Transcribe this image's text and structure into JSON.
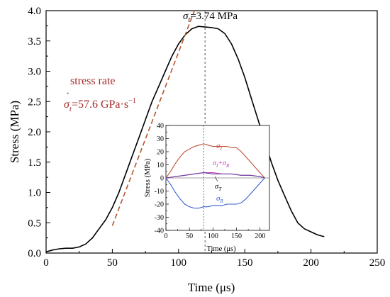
{
  "chart_data": [
    {
      "type": "line",
      "title": "",
      "xlabel": "Time (μs)",
      "ylabel": "Stress (MPa)",
      "xlim": [
        0,
        250
      ],
      "ylim": [
        0,
        4.0
      ],
      "xticks": [
        "0",
        "50",
        "100",
        "150",
        "200",
        "250"
      ],
      "yticks": [
        "0.0",
        "0.5",
        "1.0",
        "1.5",
        "2.0",
        "2.5",
        "3.0",
        "3.5",
        "4.0"
      ],
      "grid": false,
      "series": [
        {
          "color": "#000000",
          "x": [
            0,
            5,
            10,
            15,
            20,
            25,
            30,
            35,
            40,
            45,
            50,
            55,
            60,
            65,
            70,
            75,
            80,
            85,
            90,
            95,
            100,
            105,
            110,
            115,
            120,
            125,
            130,
            135,
            140,
            145,
            150,
            155,
            160,
            165,
            170,
            175,
            180,
            185,
            190,
            195,
            200,
            205,
            210
          ],
          "values": [
            0.02,
            0.05,
            0.07,
            0.08,
            0.08,
            0.1,
            0.15,
            0.25,
            0.4,
            0.55,
            0.75,
            1.0,
            1.3,
            1.6,
            1.9,
            2.2,
            2.5,
            2.75,
            3.0,
            3.25,
            3.45,
            3.6,
            3.7,
            3.74,
            3.73,
            3.72,
            3.7,
            3.62,
            3.45,
            3.2,
            2.9,
            2.55,
            2.2,
            1.85,
            1.5,
            1.2,
            0.95,
            0.7,
            0.5,
            0.4,
            0.35,
            0.3,
            0.27
          ]
        },
        {
          "color": "#b5562e",
          "dashed": true,
          "x": [
            50,
            112
          ],
          "values": [
            0.45,
            4.0
          ]
        }
      ],
      "vline": {
        "x": 120,
        "color": "#555555"
      },
      "annotations": [
        {
          "text": "σ",
          "subscript": "t",
          "rest": "=3.74 MPa"
        },
        {
          "text": "stress rate"
        },
        {
          "text": "σ",
          "subscript": "t",
          "rest": "=57.6 GPa·s",
          "superscript": "−1"
        }
      ]
    },
    {
      "type": "line",
      "xlabel": "Time (μs)",
      "ylabel": "Stress (MPa)",
      "xlim": [
        0,
        220
      ],
      "ylim": [
        -40,
        40
      ],
      "xticks": [
        "0",
        "50",
        "100",
        "150",
        "200"
      ],
      "yticks": [
        "-40",
        "-30",
        "-20",
        "-10",
        "0",
        "10",
        "20",
        "30",
        "40"
      ],
      "grid": false,
      "vline": {
        "x": 80,
        "color": "#555555"
      },
      "series": [
        {
          "label": "σI",
          "color": "#c0503a",
          "x": [
            0,
            10,
            20,
            30,
            40,
            50,
            60,
            70,
            80,
            90,
            100,
            110,
            120,
            130,
            140,
            150,
            160,
            170,
            180,
            190,
            200,
            210
          ],
          "values": [
            0,
            5,
            11,
            16,
            20,
            22,
            24,
            25,
            26,
            25,
            24,
            24,
            24,
            24,
            23,
            23,
            20,
            16,
            12,
            8,
            4,
            0
          ]
        },
        {
          "label": "σI+σR",
          "color": "#c040c0",
          "x": [
            0,
            20,
            40,
            60,
            80,
            100,
            120,
            140,
            160,
            180,
            200,
            210
          ],
          "values": [
            0,
            1,
            2,
            3,
            4,
            4,
            3,
            3,
            2,
            2,
            1,
            0
          ]
        },
        {
          "label": "σT",
          "color": "#6a3fa0",
          "x": [
            0,
            20,
            40,
            60,
            80,
            100,
            120,
            140,
            160,
            180,
            200,
            210
          ],
          "values": [
            0,
            1,
            2,
            3,
            4,
            3,
            3,
            3,
            2,
            2,
            1,
            0
          ]
        },
        {
          "label": "σR",
          "color": "#3a5fd0",
          "x": [
            0,
            10,
            20,
            30,
            40,
            50,
            60,
            70,
            80,
            90,
            100,
            110,
            120,
            130,
            140,
            150,
            160,
            170,
            180,
            190,
            200,
            210
          ],
          "values": [
            0,
            -5,
            -11,
            -16,
            -20,
            -22,
            -23,
            -23,
            -22,
            -22,
            -21,
            -21,
            -21,
            -20,
            -20,
            -20,
            -19,
            -16,
            -12,
            -8,
            -4,
            0
          ]
        }
      ],
      "labels": [
        {
          "base": "σ",
          "sub": "I"
        },
        {
          "base": "σ",
          "sub": "I",
          "mid": "+σ",
          "sub2": "R"
        },
        {
          "base": "σ",
          "sub": "T"
        },
        {
          "base": "σ",
          "sub": "R"
        }
      ]
    }
  ]
}
